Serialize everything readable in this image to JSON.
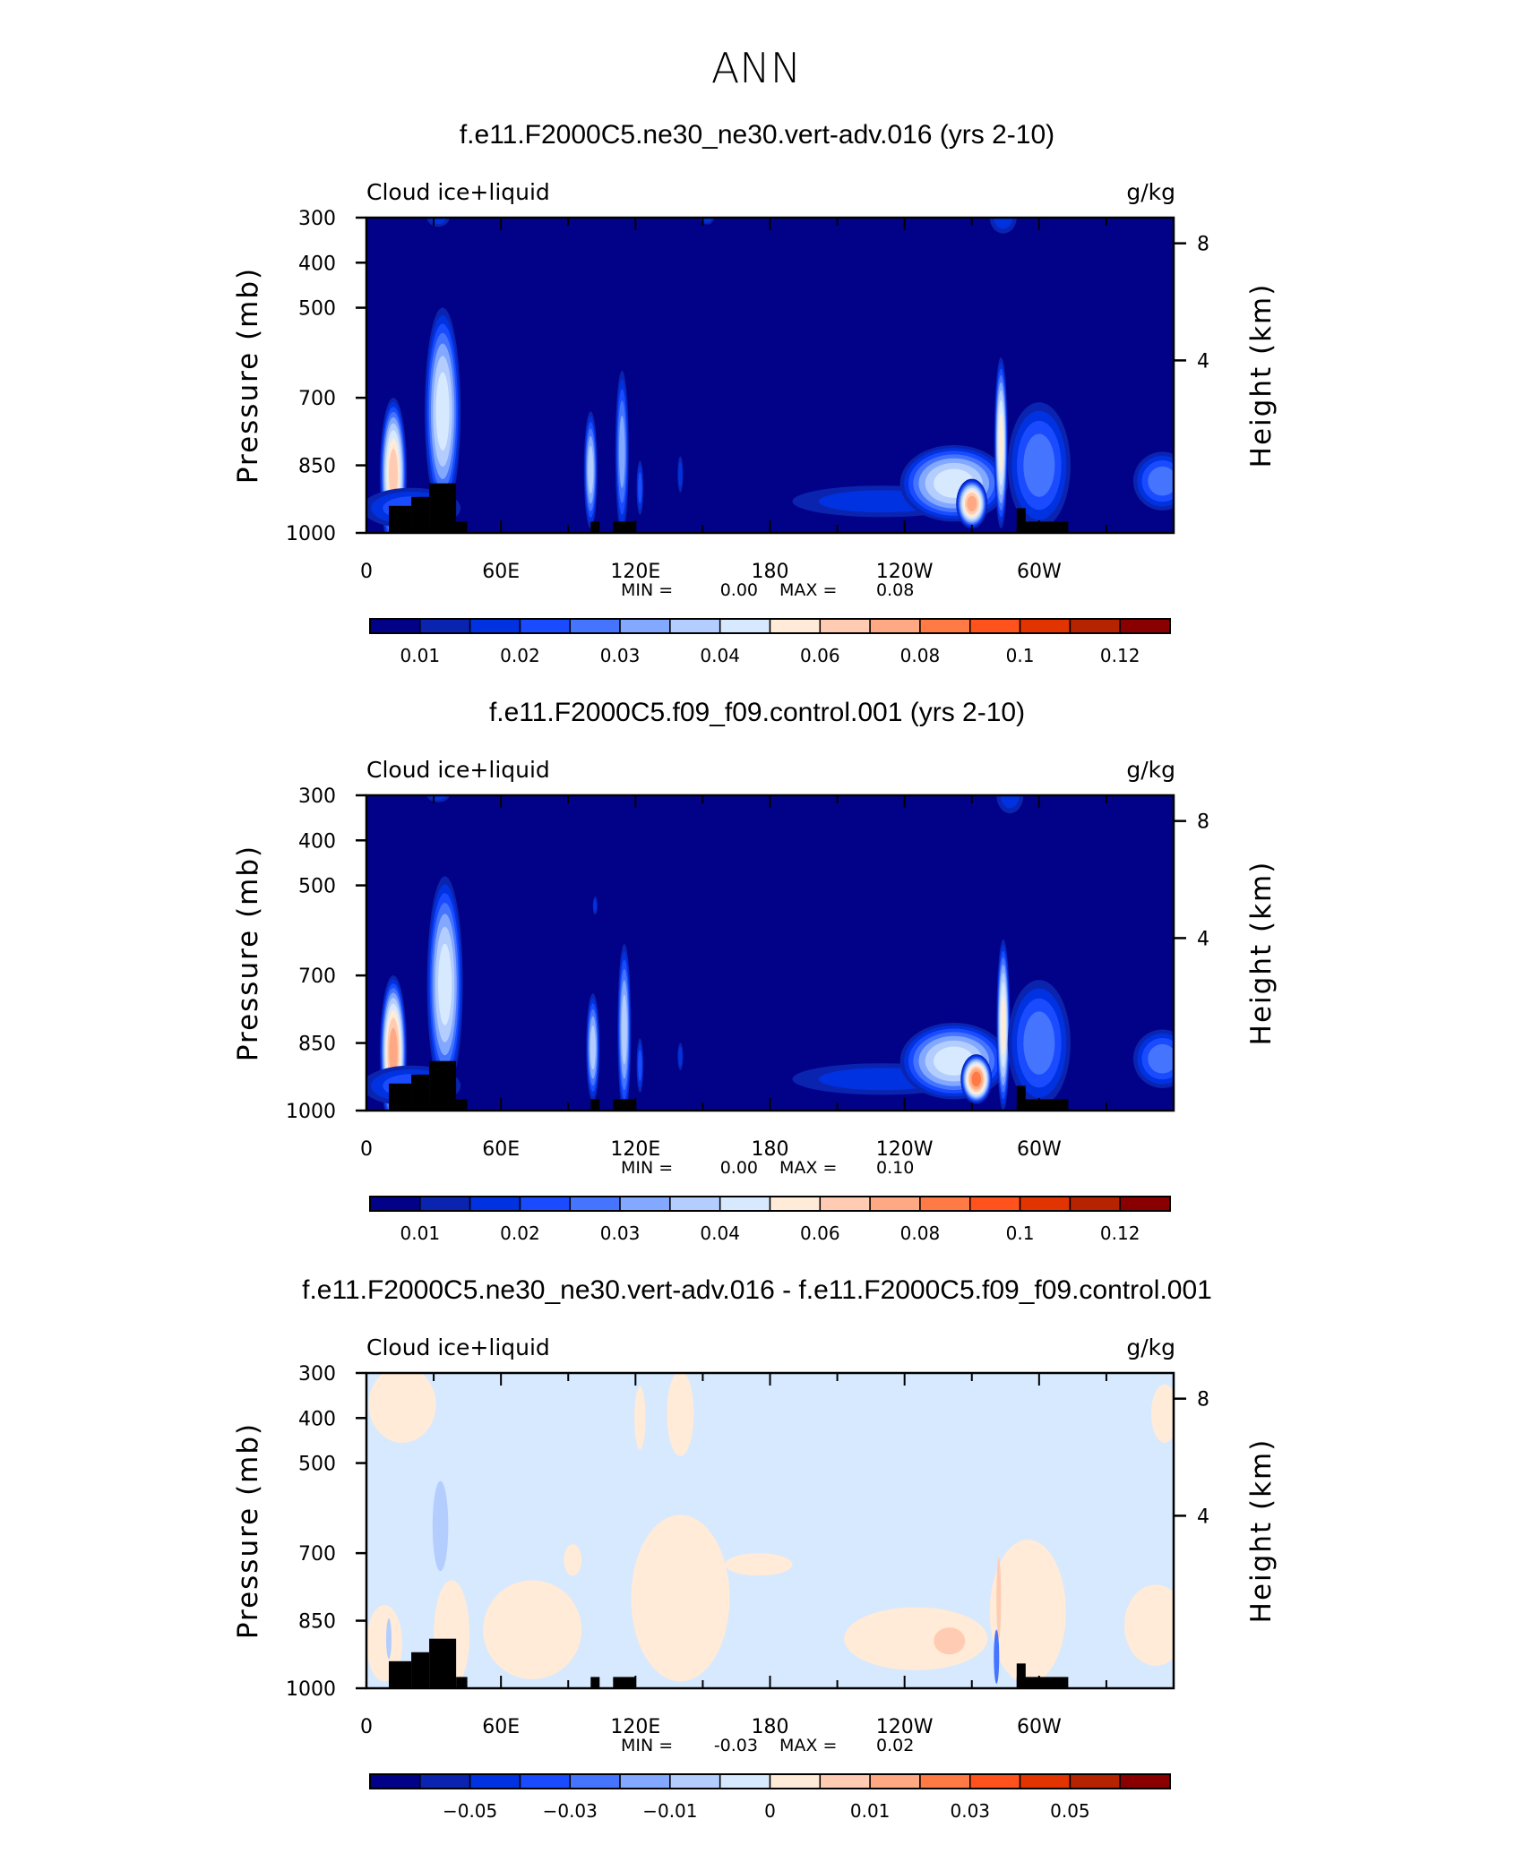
{
  "chart_data": {
    "type": "heatmap",
    "title": "ANN",
    "colors": [
      "#020289",
      "#0a24b0",
      "#0032e1",
      "#1a4bff",
      "#4575ff",
      "#83a8ff",
      "#b4cdff",
      "#d6e9ff",
      "#ffebd7",
      "#ffccb3",
      "#ffa984",
      "#ff7a45",
      "#ff521c",
      "#e23400",
      "#b52300",
      "#8a0000"
    ],
    "x_ticks": [
      {
        "lon": 0,
        "label": "0"
      },
      {
        "lon": 60,
        "label": "60E"
      },
      {
        "lon": 120,
        "label": "120E"
      },
      {
        "lon": 180,
        "label": "180"
      },
      {
        "lon": 240,
        "label": "120W"
      },
      {
        "lon": 300,
        "label": "60W"
      }
    ],
    "xlim": [
      0,
      360
    ],
    "ylim": [
      300,
      1000
    ],
    "y_ticks": [
      300,
      400,
      500,
      700,
      850,
      1000
    ],
    "y_tick_labels": [
      "300",
      "400",
      "500",
      "700",
      "850",
      "1000"
    ],
    "right_ticks": [
      {
        "p": 357,
        "label": "8"
      },
      {
        "p": 617,
        "label": "4"
      }
    ],
    "ylabel": "Pressure (mb)",
    "ylabel_right": "Height (km)",
    "land_mask": [
      [
        10,
        20,
        940
      ],
      [
        20,
        28,
        920
      ],
      [
        28,
        40,
        890
      ],
      [
        40,
        45,
        975
      ],
      [
        100,
        104,
        975
      ],
      [
        110,
        120,
        975
      ],
      [
        290,
        294,
        945
      ],
      [
        290,
        313,
        975
      ]
    ],
    "panels": [
      {
        "title": "f.e11.F2000C5.ne30_ne30.vert-adv.016 (yrs 2-10)",
        "left_label": "Cloud ice+liquid",
        "units": "g/kg",
        "min_label": "MIN =",
        "min": "0.00",
        "max_label": "MAX =",
        "max": "0.08",
        "background_level": 0,
        "colorbar_labels": [
          {
            "boundary": 1,
            "label": "0.01"
          },
          {
            "boundary": 3,
            "label": "0.02"
          },
          {
            "boundary": 5,
            "label": "0.03"
          },
          {
            "boundary": 7,
            "label": "0.04"
          },
          {
            "boundary": 9,
            "label": "0.06"
          },
          {
            "boundary": 11,
            "label": "0.08"
          },
          {
            "boundary": 13,
            "label": "0.1"
          },
          {
            "boundary": 15,
            "label": "0.12"
          }
        ],
        "features": [
          {
            "lon": 12,
            "p": 870,
            "dlon": 6,
            "dp": 170,
            "peak": 9
          },
          {
            "lon": 34,
            "p": 730,
            "dlon": 8,
            "dp": 230,
            "peak": 7
          },
          {
            "lon": 20,
            "p": 945,
            "dlon": 22,
            "dp": 45,
            "peak": 3
          },
          {
            "lon": 100,
            "p": 860,
            "dlon": 3,
            "dp": 130,
            "peak": 6
          },
          {
            "lon": 114,
            "p": 820,
            "dlon": 3,
            "dp": 180,
            "peak": 5
          },
          {
            "lon": 122,
            "p": 900,
            "dlon": 1.5,
            "dp": 60,
            "peak": 3
          },
          {
            "lon": 140,
            "p": 870,
            "dlon": 1.2,
            "dp": 40,
            "peak": 2
          },
          {
            "lon": 230,
            "p": 930,
            "dlon": 40,
            "dp": 35,
            "peak": 2
          },
          {
            "lon": 262,
            "p": 890,
            "dlon": 24,
            "dp": 85,
            "peak": 7
          },
          {
            "lon": 270,
            "p": 935,
            "dlon": 7,
            "dp": 55,
            "peak": 10
          },
          {
            "lon": 283,
            "p": 800,
            "dlon": 3,
            "dp": 190,
            "peak": 8
          },
          {
            "lon": 300,
            "p": 850,
            "dlon": 14,
            "dp": 140,
            "peak": 4
          },
          {
            "lon": 355,
            "p": 885,
            "dlon": 13,
            "dp": 65,
            "peak": 4
          },
          {
            "lon": 32,
            "p": 300,
            "dlon": 5,
            "dp": 20,
            "peak": 2
          },
          {
            "lon": 152,
            "p": 300,
            "dlon": 3,
            "dp": 15,
            "peak": 2
          },
          {
            "lon": 284,
            "p": 300,
            "dlon": 6,
            "dp": 35,
            "peak": 2
          }
        ]
      },
      {
        "title": "f.e11.F2000C5.f09_f09.control.001 (yrs 2-10)",
        "left_label": "Cloud ice+liquid",
        "units": "g/kg",
        "min_label": "MIN =",
        "min": "0.00",
        "max_label": "MAX =",
        "max": "0.10",
        "background_level": 0,
        "colorbar_labels": [
          {
            "boundary": 1,
            "label": "0.01"
          },
          {
            "boundary": 3,
            "label": "0.02"
          },
          {
            "boundary": 5,
            "label": "0.03"
          },
          {
            "boundary": 7,
            "label": "0.04"
          },
          {
            "boundary": 9,
            "label": "0.06"
          },
          {
            "boundary": 11,
            "label": "0.08"
          },
          {
            "boundary": 13,
            "label": "0.1"
          },
          {
            "boundary": 15,
            "label": "0.12"
          }
        ],
        "features": [
          {
            "lon": 12,
            "p": 870,
            "dlon": 6,
            "dp": 170,
            "peak": 10
          },
          {
            "lon": 35,
            "p": 720,
            "dlon": 8,
            "dp": 240,
            "peak": 7
          },
          {
            "lon": 20,
            "p": 945,
            "dlon": 22,
            "dp": 45,
            "peak": 3
          },
          {
            "lon": 101,
            "p": 860,
            "dlon": 3,
            "dp": 120,
            "peak": 6
          },
          {
            "lon": 115,
            "p": 820,
            "dlon": 3,
            "dp": 190,
            "peak": 6
          },
          {
            "lon": 122,
            "p": 900,
            "dlon": 1.5,
            "dp": 60,
            "peak": 3
          },
          {
            "lon": 140,
            "p": 880,
            "dlon": 1.2,
            "dp": 30,
            "peak": 2
          },
          {
            "lon": 102,
            "p": 545,
            "dlon": 1,
            "dp": 20,
            "peak": 2
          },
          {
            "lon": 230,
            "p": 930,
            "dlon": 40,
            "dp": 35,
            "peak": 2
          },
          {
            "lon": 262,
            "p": 890,
            "dlon": 24,
            "dp": 85,
            "peak": 7
          },
          {
            "lon": 272,
            "p": 930,
            "dlon": 7,
            "dp": 55,
            "peak": 11
          },
          {
            "lon": 284,
            "p": 810,
            "dlon": 3,
            "dp": 190,
            "peak": 8
          },
          {
            "lon": 300,
            "p": 850,
            "dlon": 14,
            "dp": 140,
            "peak": 4
          },
          {
            "lon": 355,
            "p": 885,
            "dlon": 13,
            "dp": 65,
            "peak": 4
          },
          {
            "lon": 32,
            "p": 300,
            "dlon": 5,
            "dp": 15,
            "peak": 2
          },
          {
            "lon": 287,
            "p": 300,
            "dlon": 6,
            "dp": 40,
            "peak": 2
          }
        ]
      },
      {
        "title": "f.e11.F2000C5.ne30_ne30.vert-adv.016 - f.e11.F2000C5.f09_f09.control.001",
        "left_label": "Cloud ice+liquid",
        "units": "g/kg",
        "min_label": "MIN =",
        "min": "-0.03",
        "max_label": "MAX =",
        "max": "0.02",
        "background_level": 7,
        "colorbar_labels": [
          {
            "boundary": 2,
            "label": "−0.05"
          },
          {
            "boundary": 4,
            "label": "−0.03"
          },
          {
            "boundary": 6,
            "label": "−0.01"
          },
          {
            "boundary": 8,
            "label": "0"
          },
          {
            "boundary": 10,
            "label": "0.01"
          },
          {
            "boundary": 12,
            "label": "0.03"
          },
          {
            "boundary": 14,
            "label": "0.05"
          }
        ],
        "patches": [
          {
            "lon": 16,
            "p": 370,
            "dlon": 15,
            "dp": 85,
            "level": 8
          },
          {
            "lon": 122,
            "p": 400,
            "dlon": 2.5,
            "dp": 70,
            "level": 8
          },
          {
            "lon": 140,
            "p": 390,
            "dlon": 6,
            "dp": 95,
            "level": 8
          },
          {
            "lon": 74,
            "p": 870,
            "dlon": 22,
            "dp": 110,
            "level": 8
          },
          {
            "lon": 140,
            "p": 800,
            "dlon": 22,
            "dp": 185,
            "level": 8
          },
          {
            "lon": 175,
            "p": 725,
            "dlon": 15,
            "dp": 25,
            "level": 8
          },
          {
            "lon": 92,
            "p": 715,
            "dlon": 4,
            "dp": 35,
            "level": 8
          },
          {
            "lon": 245,
            "p": 890,
            "dlon": 32,
            "dp": 70,
            "level": 8
          },
          {
            "lon": 295,
            "p": 830,
            "dlon": 17,
            "dp": 160,
            "level": 8
          },
          {
            "lon": 352,
            "p": 860,
            "dlon": 14,
            "dp": 90,
            "level": 8
          },
          {
            "lon": 356,
            "p": 390,
            "dlon": 6,
            "dp": 65,
            "level": 8
          },
          {
            "lon": 8,
            "p": 900,
            "dlon": 8,
            "dp": 85,
            "level": 8
          },
          {
            "lon": 38,
            "p": 880,
            "dlon": 8,
            "dp": 120,
            "level": 8
          },
          {
            "lon": 260,
            "p": 895,
            "dlon": 7,
            "dp": 30,
            "level": 9
          },
          {
            "lon": 282,
            "p": 800,
            "dlon": 1,
            "dp": 90,
            "level": 9
          },
          {
            "lon": 33,
            "p": 640,
            "dlon": 3.5,
            "dp": 100,
            "level": 6
          },
          {
            "lon": 10,
            "p": 890,
            "dlon": 1.2,
            "dp": 45,
            "level": 6
          },
          {
            "lon": 281,
            "p": 930,
            "dlon": 1.2,
            "dp": 60,
            "level": 4
          }
        ]
      }
    ]
  }
}
